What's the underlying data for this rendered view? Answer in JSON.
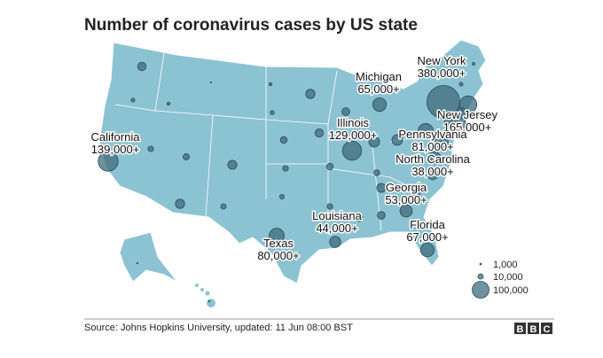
{
  "title": "Number of coronavirus cases by US state",
  "states": [
    {
      "name": "New York",
      "value": 380000,
      "label": "380,000+"
    },
    {
      "name": "New Jersey",
      "value": 165000,
      "label": "165,000+"
    },
    {
      "name": "Michigan",
      "value": 65000,
      "label": "65,000+"
    },
    {
      "name": "Illinois",
      "value": 129000,
      "label": "129,000+"
    },
    {
      "name": "California",
      "value": 139000,
      "label": "139,000+"
    },
    {
      "name": "Pennsylvania",
      "value": 81000,
      "label": "81,000+"
    },
    {
      "name": "North Carolina",
      "value": 38000,
      "label": "38,000+"
    },
    {
      "name": "Georgia",
      "value": 53000,
      "label": "53,000+"
    },
    {
      "name": "Louisiana",
      "value": 44000,
      "label": "44,000+"
    },
    {
      "name": "Texas",
      "value": 80000,
      "label": "80,000+"
    },
    {
      "name": "Florida",
      "value": 67000,
      "label": "67,000+"
    }
  ],
  "other_values": [
    25000,
    5000,
    3500,
    500,
    3000,
    5500,
    30000,
    22000,
    24000,
    16000,
    11000,
    14000,
    29000,
    11000,
    15000,
    40000,
    40000,
    12000,
    28000,
    30000,
    10000,
    7500,
    11000,
    18000,
    21000,
    17000,
    52000,
    60000,
    104000,
    44000,
    2500,
    5000,
    10000,
    600,
    700
  ],
  "legend": [
    {
      "value": 1000,
      "label": "1,000"
    },
    {
      "value": 10000,
      "label": "10,000"
    },
    {
      "value": 100000,
      "label": "100,000"
    }
  ],
  "source": "Source: Johns Hopkins University, updated: 11 Jun 08:00 BST",
  "logo": [
    "B",
    "B",
    "C"
  ]
}
